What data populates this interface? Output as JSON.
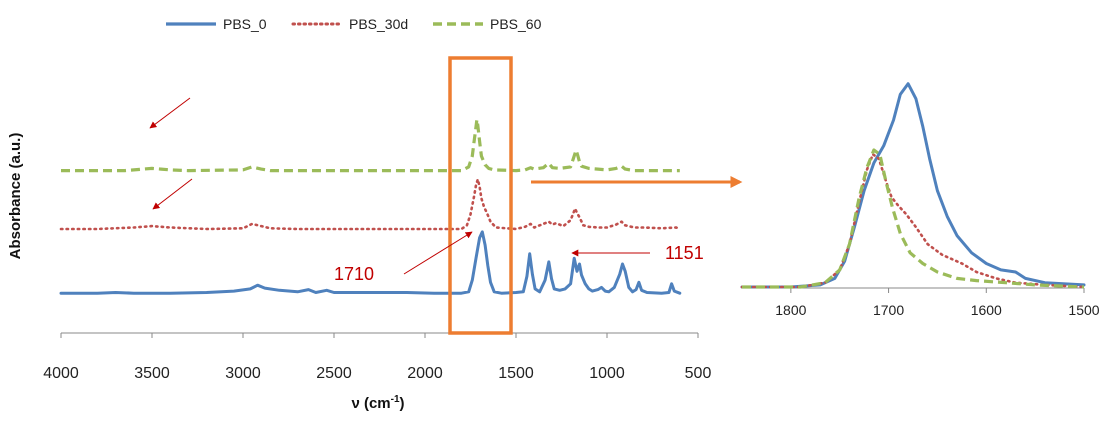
{
  "colors": {
    "pbs_0": "#4f81bd",
    "pbs_30d": "#c0504d",
    "pbs_60": "#9bbb59",
    "highlight_box": "#ed7d31",
    "annotation": "#c00000",
    "axis": "#888888"
  },
  "chart_data": [
    {
      "type": "line",
      "title": "",
      "xlabel_main": "ν (cm",
      "xlabel_sup": "-1",
      "xlabel_end": ")",
      "ylabel": "Absorbance (a.u.)",
      "xlim": [
        4000,
        500
      ],
      "ylim": [
        0,
        3
      ],
      "x_ticks": [
        4000,
        3500,
        3000,
        2500,
        2000,
        1500,
        1000,
        500
      ],
      "x_tick_labels": [
        "4000",
        "3500",
        "3000",
        "2500",
        "2000",
        "1500",
        "1000",
        "500"
      ],
      "legend": [
        "PBS_0",
        "PBS_30d",
        "PBS_60"
      ],
      "series": [
        {
          "name": "PBS_0",
          "style": "solid",
          "points": [
            [
              4000,
              0.12
            ],
            [
              3800,
              0.12
            ],
            [
              3700,
              0.13
            ],
            [
              3600,
              0.12
            ],
            [
              3400,
              0.12
            ],
            [
              3200,
              0.13
            ],
            [
              3050,
              0.15
            ],
            [
              2960,
              0.18
            ],
            [
              2920,
              0.23
            ],
            [
              2880,
              0.19
            ],
            [
              2800,
              0.16
            ],
            [
              2700,
              0.14
            ],
            [
              2640,
              0.17
            ],
            [
              2600,
              0.13
            ],
            [
              2540,
              0.16
            ],
            [
              2500,
              0.13
            ],
            [
              2300,
              0.13
            ],
            [
              2100,
              0.13
            ],
            [
              1950,
              0.12
            ],
            [
              1800,
              0.12
            ],
            [
              1760,
              0.14
            ],
            [
              1740,
              0.3
            ],
            [
              1720,
              0.6
            ],
            [
              1700,
              0.88
            ],
            [
              1685,
              0.96
            ],
            [
              1670,
              0.78
            ],
            [
              1655,
              0.5
            ],
            [
              1640,
              0.27
            ],
            [
              1620,
              0.14
            ],
            [
              1580,
              0.12
            ],
            [
              1500,
              0.13
            ],
            [
              1460,
              0.14
            ],
            [
              1440,
              0.35
            ],
            [
              1425,
              0.66
            ],
            [
              1410,
              0.38
            ],
            [
              1395,
              0.18
            ],
            [
              1370,
              0.14
            ],
            [
              1340,
              0.3
            ],
            [
              1320,
              0.55
            ],
            [
              1305,
              0.32
            ],
            [
              1290,
              0.18
            ],
            [
              1260,
              0.16
            ],
            [
              1230,
              0.18
            ],
            [
              1200,
              0.25
            ],
            [
              1180,
              0.6
            ],
            [
              1165,
              0.42
            ],
            [
              1151,
              0.52
            ],
            [
              1140,
              0.37
            ],
            [
              1120,
              0.25
            ],
            [
              1100,
              0.18
            ],
            [
              1080,
              0.15
            ],
            [
              1050,
              0.17
            ],
            [
              1030,
              0.2
            ],
            [
              1010,
              0.15
            ],
            [
              990,
              0.14
            ],
            [
              960,
              0.2
            ],
            [
              930,
              0.38
            ],
            [
              915,
              0.52
            ],
            [
              900,
              0.42
            ],
            [
              880,
              0.2
            ],
            [
              860,
              0.14
            ],
            [
              840,
              0.17
            ],
            [
              825,
              0.27
            ],
            [
              810,
              0.16
            ],
            [
              780,
              0.13
            ],
            [
              700,
              0.12
            ],
            [
              660,
              0.13
            ],
            [
              645,
              0.25
            ],
            [
              630,
              0.15
            ],
            [
              600,
              0.12
            ]
          ]
        },
        {
          "name": "PBS_30d",
          "style": "dotted",
          "points": [
            [
              4000,
              1.0
            ],
            [
              3800,
              1.0
            ],
            [
              3600,
              1.02
            ],
            [
              3500,
              1.04
            ],
            [
              3400,
              1.02
            ],
            [
              3200,
              1.0
            ],
            [
              3000,
              1.01
            ],
            [
              2950,
              1.07
            ],
            [
              2900,
              1.04
            ],
            [
              2850,
              1.01
            ],
            [
              2700,
              1.0
            ],
            [
              2500,
              1.0
            ],
            [
              2200,
              1.0
            ],
            [
              1900,
              1.0
            ],
            [
              1800,
              1.0
            ],
            [
              1770,
              1.05
            ],
            [
              1750,
              1.2
            ],
            [
              1730,
              1.45
            ],
            [
              1720,
              1.6
            ],
            [
              1710,
              1.68
            ],
            [
              1700,
              1.58
            ],
            [
              1690,
              1.42
            ],
            [
              1675,
              1.3
            ],
            [
              1660,
              1.22
            ],
            [
              1640,
              1.1
            ],
            [
              1610,
              1.02
            ],
            [
              1500,
              1.0
            ],
            [
              1450,
              1.03
            ],
            [
              1420,
              1.07
            ],
            [
              1400,
              1.02
            ],
            [
              1340,
              1.08
            ],
            [
              1320,
              1.1
            ],
            [
              1300,
              1.06
            ],
            [
              1280,
              1.08
            ],
            [
              1240,
              1.04
            ],
            [
              1200,
              1.12
            ],
            [
              1175,
              1.28
            ],
            [
              1165,
              1.22
            ],
            [
              1151,
              1.16
            ],
            [
              1130,
              1.05
            ],
            [
              1100,
              1.03
            ],
            [
              1050,
              1.02
            ],
            [
              1000,
              1.02
            ],
            [
              950,
              1.06
            ],
            [
              920,
              1.1
            ],
            [
              900,
              1.05
            ],
            [
              850,
              1.02
            ],
            [
              800,
              1.02
            ],
            [
              700,
              1.01
            ],
            [
              620,
              1.02
            ],
            [
              600,
              1.0
            ]
          ]
        },
        {
          "name": "PBS_60",
          "style": "dashed",
          "points": [
            [
              4000,
              1.8
            ],
            [
              3800,
              1.8
            ],
            [
              3650,
              1.8
            ],
            [
              3600,
              1.81
            ],
            [
              3550,
              1.82
            ],
            [
              3500,
              1.83
            ],
            [
              3450,
              1.82
            ],
            [
              3400,
              1.81
            ],
            [
              3300,
              1.8
            ],
            [
              3000,
              1.81
            ],
            [
              2950,
              1.85
            ],
            [
              2900,
              1.82
            ],
            [
              2850,
              1.8
            ],
            [
              2500,
              1.8
            ],
            [
              2000,
              1.8
            ],
            [
              1800,
              1.8
            ],
            [
              1760,
              1.85
            ],
            [
              1740,
              2.0
            ],
            [
              1730,
              2.2
            ],
            [
              1720,
              2.4
            ],
            [
              1715,
              2.5
            ],
            [
              1710,
              2.42
            ],
            [
              1700,
              2.2
            ],
            [
              1690,
              2.0
            ],
            [
              1670,
              1.88
            ],
            [
              1650,
              1.83
            ],
            [
              1620,
              1.81
            ],
            [
              1500,
              1.8
            ],
            [
              1450,
              1.81
            ],
            [
              1420,
              1.84
            ],
            [
              1400,
              1.82
            ],
            [
              1350,
              1.84
            ],
            [
              1320,
              1.9
            ],
            [
              1300,
              1.84
            ],
            [
              1260,
              1.83
            ],
            [
              1200,
              1.85
            ],
            [
              1170,
              2.08
            ],
            [
              1160,
              2.0
            ],
            [
              1151,
              1.92
            ],
            [
              1140,
              1.86
            ],
            [
              1100,
              1.83
            ],
            [
              1050,
              1.82
            ],
            [
              1000,
              1.81
            ],
            [
              950,
              1.83
            ],
            [
              920,
              1.86
            ],
            [
              900,
              1.82
            ],
            [
              850,
              1.8
            ],
            [
              700,
              1.8
            ],
            [
              600,
              1.8
            ]
          ]
        }
      ],
      "annotations": {
        "peak_1710_label": "1710",
        "peak_1151_label": "1151"
      },
      "highlight_range": [
        1850,
        1530
      ]
    },
    {
      "type": "line",
      "title": "",
      "xlim": [
        1850,
        1500
      ],
      "ylim": [
        0,
        1
      ],
      "x_ticks": [
        1800,
        1700,
        1600,
        1500
      ],
      "x_tick_labels": [
        "1800",
        "1700",
        "1600",
        "1500"
      ],
      "series": [
        {
          "name": "PBS_0",
          "style": "solid",
          "points": [
            [
              1850,
              0.0
            ],
            [
              1800,
              0.0
            ],
            [
              1770,
              0.01
            ],
            [
              1755,
              0.04
            ],
            [
              1745,
              0.12
            ],
            [
              1735,
              0.28
            ],
            [
              1725,
              0.45
            ],
            [
              1715,
              0.58
            ],
            [
              1705,
              0.66
            ],
            [
              1695,
              0.78
            ],
            [
              1688,
              0.9
            ],
            [
              1680,
              0.95
            ],
            [
              1672,
              0.88
            ],
            [
              1665,
              0.75
            ],
            [
              1658,
              0.6
            ],
            [
              1650,
              0.45
            ],
            [
              1640,
              0.33
            ],
            [
              1630,
              0.24
            ],
            [
              1615,
              0.16
            ],
            [
              1600,
              0.11
            ],
            [
              1585,
              0.08
            ],
            [
              1570,
              0.07
            ],
            [
              1560,
              0.04
            ],
            [
              1540,
              0.02
            ],
            [
              1500,
              0.01
            ]
          ]
        },
        {
          "name": "PBS_30d",
          "style": "dotted",
          "points": [
            [
              1850,
              0.0
            ],
            [
              1790,
              0.0
            ],
            [
              1765,
              0.02
            ],
            [
              1750,
              0.08
            ],
            [
              1740,
              0.2
            ],
            [
              1730,
              0.4
            ],
            [
              1722,
              0.55
            ],
            [
              1716,
              0.62
            ],
            [
              1710,
              0.6
            ],
            [
              1703,
              0.5
            ],
            [
              1697,
              0.42
            ],
            [
              1690,
              0.38
            ],
            [
              1682,
              0.34
            ],
            [
              1672,
              0.28
            ],
            [
              1660,
              0.2
            ],
            [
              1645,
              0.15
            ],
            [
              1625,
              0.11
            ],
            [
              1610,
              0.07
            ],
            [
              1590,
              0.04
            ],
            [
              1570,
              0.02
            ],
            [
              1540,
              0.01
            ],
            [
              1500,
              0.0
            ]
          ]
        },
        {
          "name": "PBS_60",
          "style": "dashed",
          "points": [
            [
              1850,
              0.0
            ],
            [
              1790,
              0.0
            ],
            [
              1765,
              0.02
            ],
            [
              1750,
              0.08
            ],
            [
              1740,
              0.2
            ],
            [
              1730,
              0.42
            ],
            [
              1722,
              0.56
            ],
            [
              1715,
              0.64
            ],
            [
              1709,
              0.62
            ],
            [
              1703,
              0.5
            ],
            [
              1696,
              0.37
            ],
            [
              1688,
              0.25
            ],
            [
              1678,
              0.16
            ],
            [
              1665,
              0.11
            ],
            [
              1650,
              0.07
            ],
            [
              1630,
              0.04
            ],
            [
              1610,
              0.03
            ],
            [
              1580,
              0.02
            ],
            [
              1550,
              0.01
            ],
            [
              1500,
              0.0
            ]
          ]
        }
      ]
    }
  ]
}
